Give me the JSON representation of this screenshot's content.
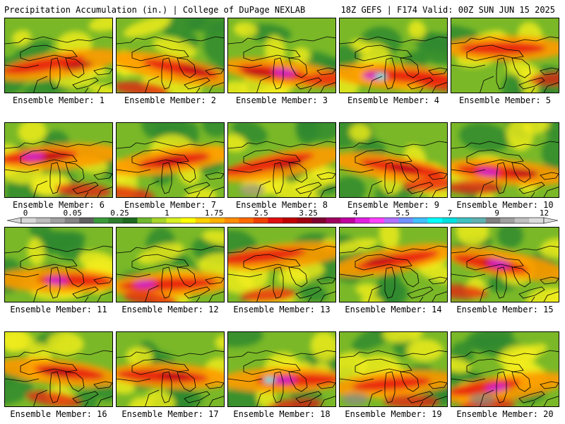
{
  "header": {
    "left": "Precipitation Accumulation (in.) | College of DuPage NEXLAB",
    "right": "18Z GEFS | F174 Valid: 00Z SUN JUN 15 2025"
  },
  "colorbar": {
    "labels": [
      "0",
      "0.05",
      "0.25",
      "1",
      "1.75",
      "2.5",
      "3.25",
      "4",
      "5.5",
      "7",
      "9",
      "12"
    ],
    "colors": [
      "#d8d8d8",
      "#bcbcbc",
      "#a0a0a0",
      "#848484",
      "#606060",
      "#3a9a3a",
      "#2e7d2e",
      "#1e6a1e",
      "#6fb82e",
      "#a8d42a",
      "#d8f020",
      "#ffff00",
      "#ffd000",
      "#ffb000",
      "#ff8c00",
      "#ff6a00",
      "#f04000",
      "#e01010",
      "#c00000",
      "#a00010",
      "#800030",
      "#a00060",
      "#c000a0",
      "#e020e0",
      "#ff40ff",
      "#b070ff",
      "#7090ff",
      "#40c0ff",
      "#00ffff",
      "#00e0e0",
      "#40c0c0",
      "#60b0b0",
      "#808080",
      "#a0a0a0",
      "#c0c0c0",
      "#dcdcdc"
    ]
  },
  "members": [
    {
      "label": "Ensemble Member: 1"
    },
    {
      "label": "Ensemble Member: 2"
    },
    {
      "label": "Ensemble Member: 3"
    },
    {
      "label": "Ensemble Member: 4"
    },
    {
      "label": "Ensemble Member: 5"
    },
    {
      "label": "Ensemble Member: 6"
    },
    {
      "label": "Ensemble Member: 7"
    },
    {
      "label": "Ensemble Member: 8"
    },
    {
      "label": "Ensemble Member: 9"
    },
    {
      "label": "Ensemble Member: 10"
    },
    {
      "label": "Ensemble Member: 11"
    },
    {
      "label": "Ensemble Member: 12"
    },
    {
      "label": "Ensemble Member: 13"
    },
    {
      "label": "Ensemble Member: 14"
    },
    {
      "label": "Ensemble Member: 15"
    },
    {
      "label": "Ensemble Member: 16"
    },
    {
      "label": "Ensemble Member: 17"
    },
    {
      "label": "Ensemble Member: 18"
    },
    {
      "label": "Ensemble Member: 19"
    },
    {
      "label": "Ensemble Member: 20"
    }
  ],
  "palette": {
    "base": "#7ab828",
    "green": "#2f8a2f",
    "yellow": "#f2ee1a",
    "orange": "#ff9a00",
    "red": "#e81e10",
    "darkred": "#b8001a",
    "magenta": "#d020d0",
    "cyan": "#30f0f0",
    "gray": "#8a8a8a",
    "ink": "#000000"
  }
}
